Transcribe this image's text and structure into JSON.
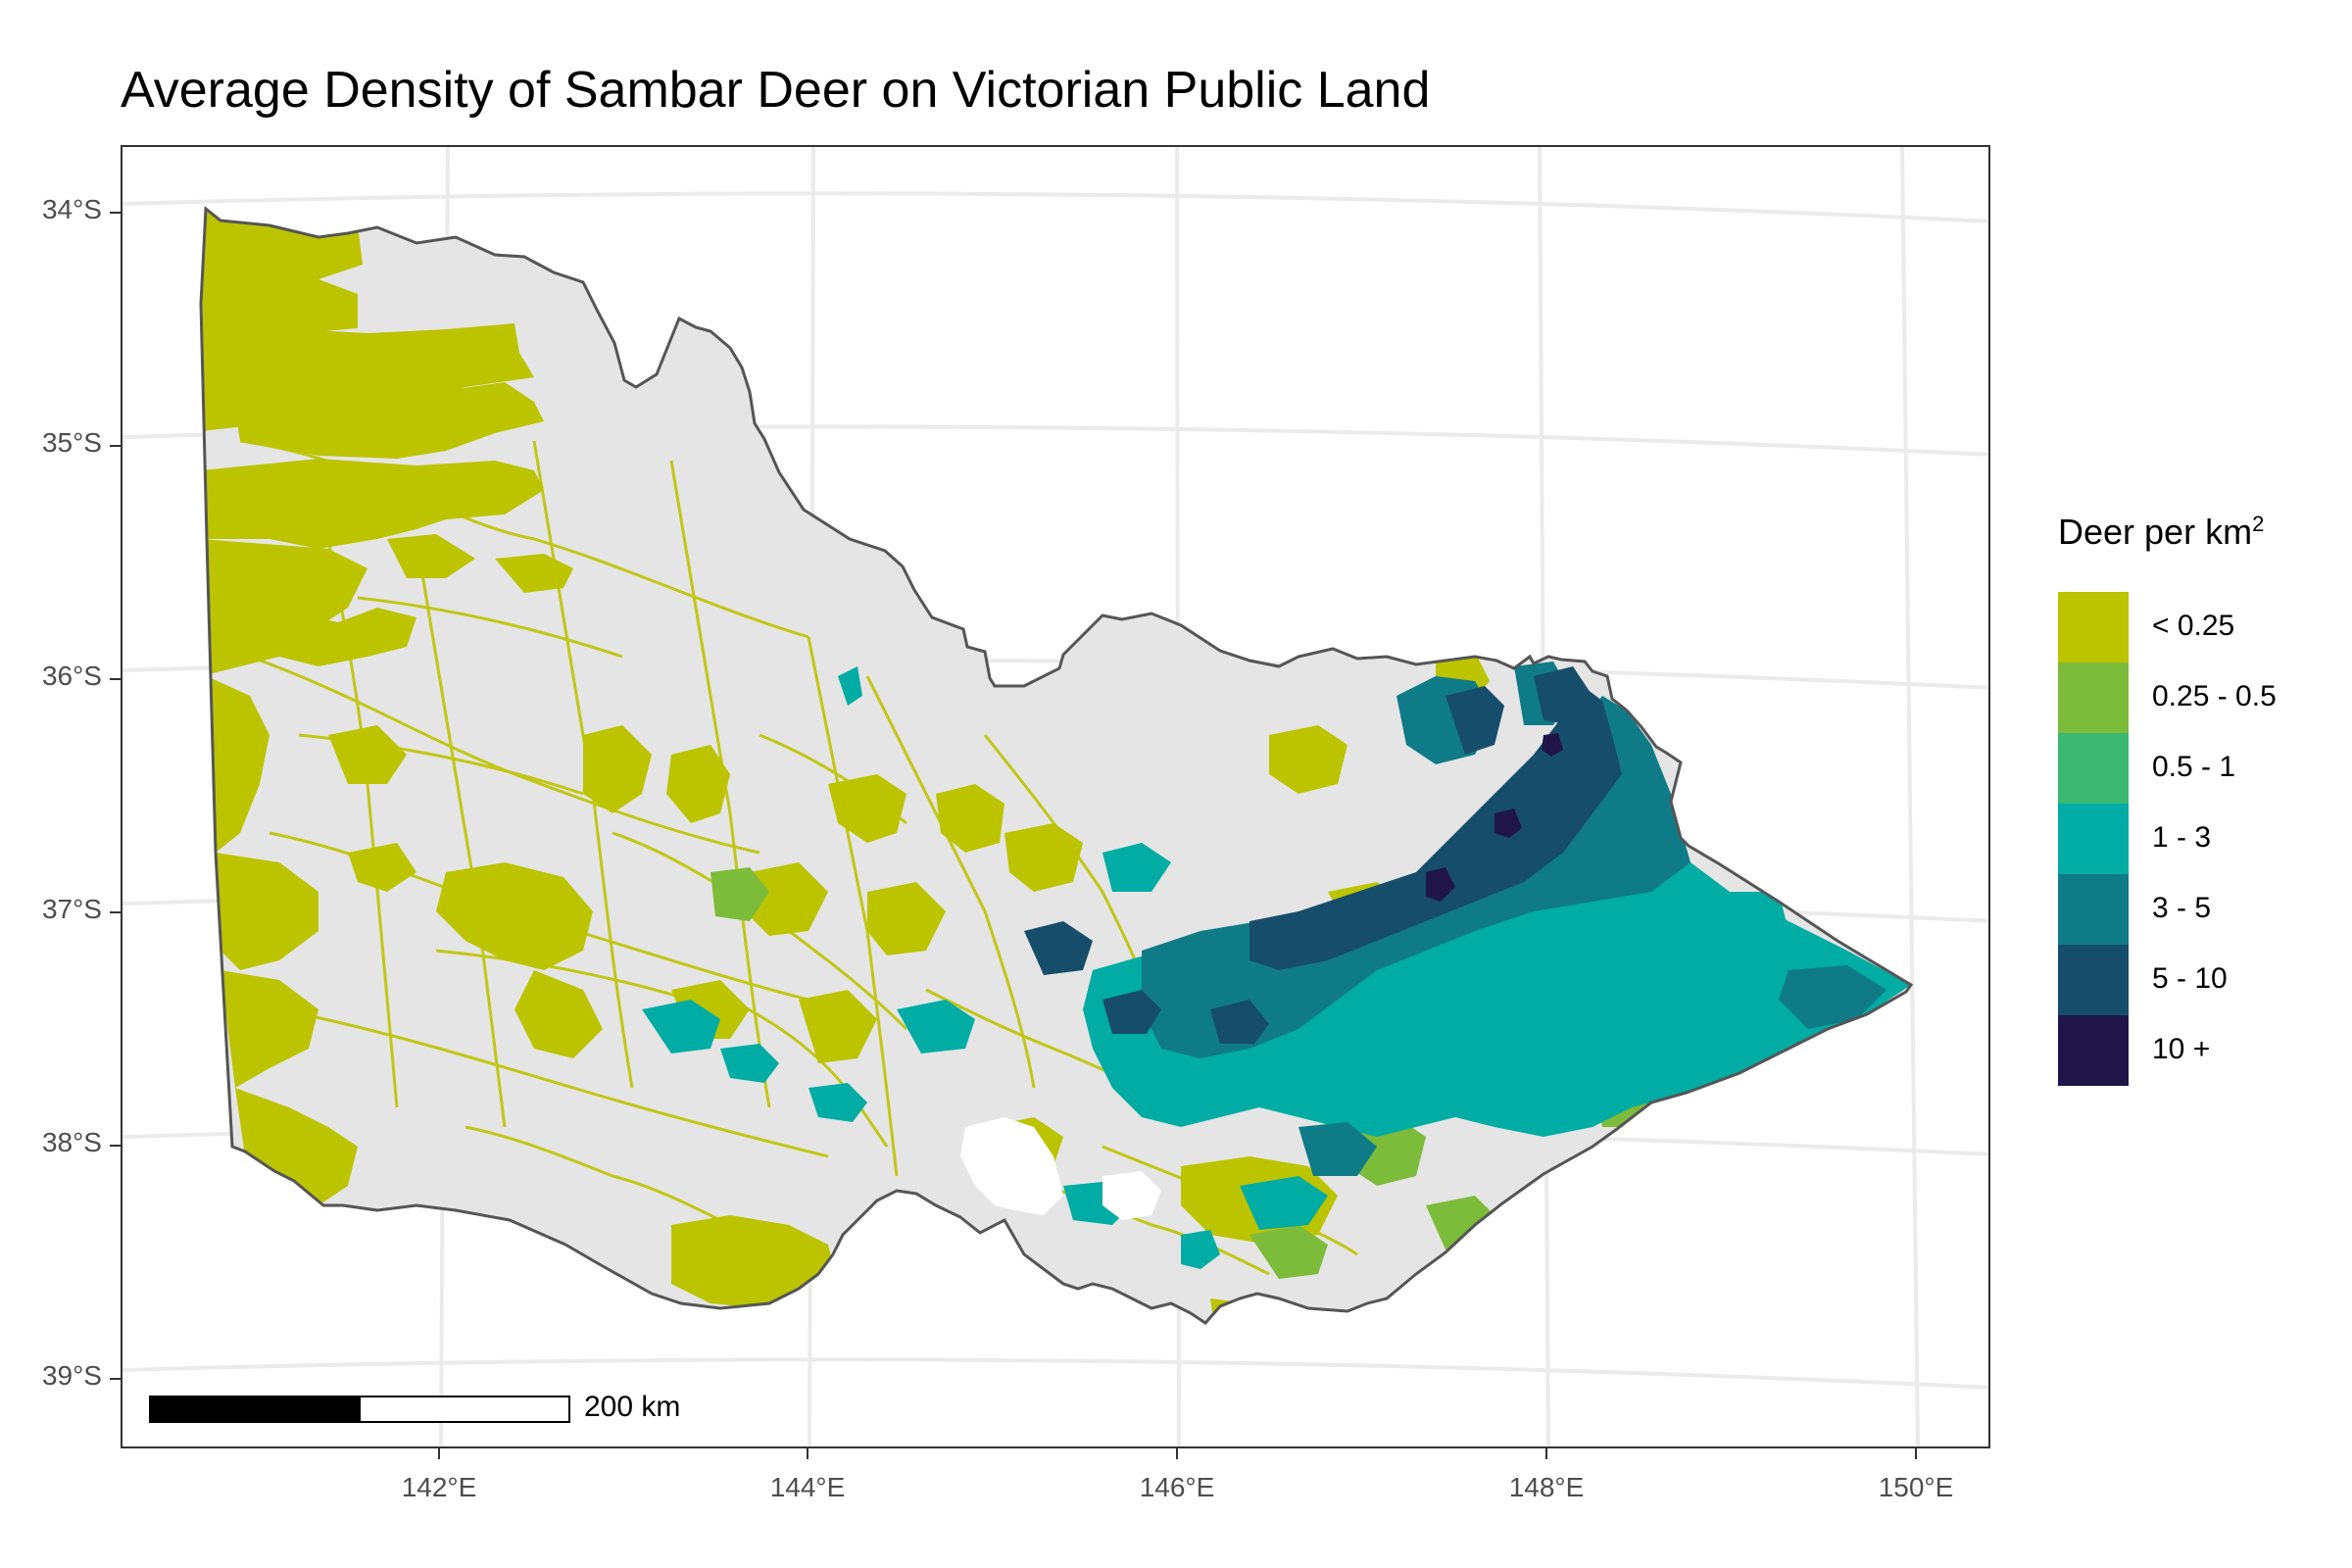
{
  "title": "Average Density of Sambar Deer on Victorian Public Land",
  "axes": {
    "y_ticks": [
      "34°S",
      "35°S",
      "36°S",
      "37°S",
      "38°S",
      "39°S"
    ],
    "x_ticks": [
      "142°E",
      "144°E",
      "146°E",
      "148°E",
      "150°E"
    ]
  },
  "legend": {
    "title_main": "Deer per km",
    "title_sup": "2",
    "placement": "right",
    "classes": [
      {
        "label": "< 0.25",
        "color": "#bcc400"
      },
      {
        "label": "0.25 - 0.5",
        "color": "#7dbb3a"
      },
      {
        "label": "0.5 - 1",
        "color": "#3cb873"
      },
      {
        "label": "1 - 3",
        "color": "#00aca4"
      },
      {
        "label": "3 - 5",
        "color": "#0f7b86"
      },
      {
        "label": "5 - 10",
        "color": "#164d6a"
      },
      {
        "label": "10 +",
        "color": "#1f1548"
      }
    ]
  },
  "scalebar": {
    "label": "200 km"
  },
  "colors": {
    "land": "#e5e5e5",
    "outline": "#555555",
    "graticule": "#ebebeb",
    "panel_border": "#333333"
  }
}
